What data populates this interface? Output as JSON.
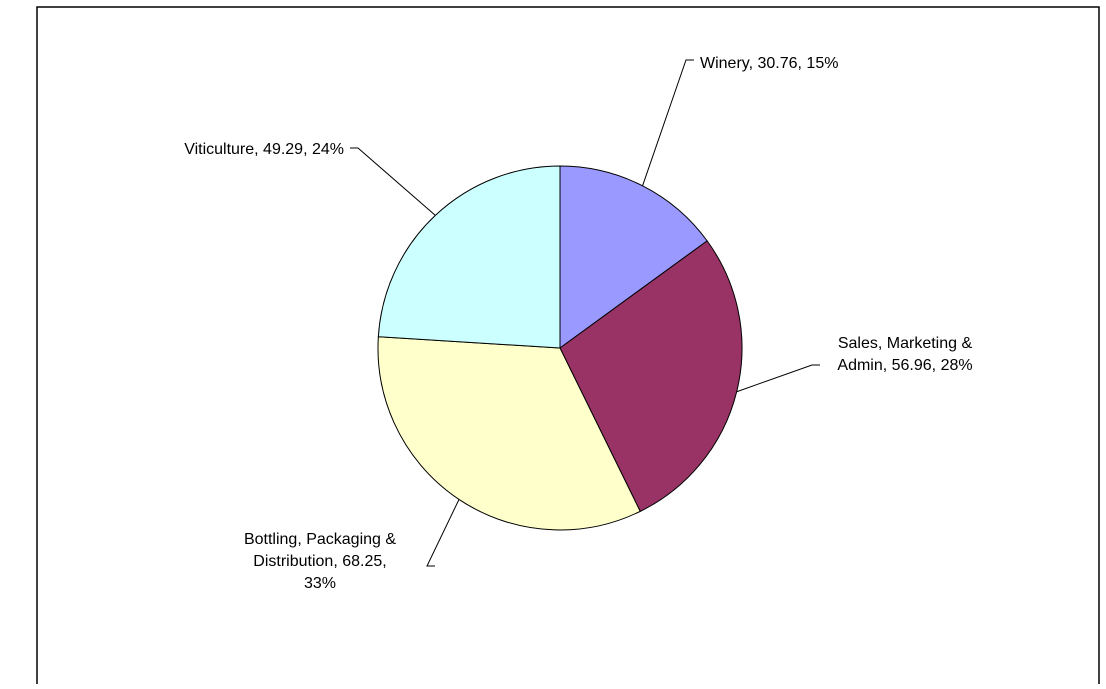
{
  "chart_data": {
    "type": "pie",
    "slices": [
      {
        "label": "Winery",
        "value": 30.76,
        "percent": 15,
        "color": "#9999ff",
        "label_lines": [
          "Winery, 30.76, 15%"
        ]
      },
      {
        "label": "Sales, Marketing & Admin",
        "value": 56.96,
        "percent": 28,
        "color": "#993366",
        "label_lines": [
          "Sales, Marketing &",
          "Admin, 56.96, 28%"
        ]
      },
      {
        "label": "Bottling, Packaging & Distribution",
        "value": 68.25,
        "percent": 33,
        "color": "#ffffcc",
        "label_lines": [
          "Bottling, Packaging &",
          "Distribution, 68.25,",
          "33%"
        ]
      },
      {
        "label": "Viticulture",
        "value": 49.29,
        "percent": 24,
        "color": "#ccffff",
        "label_lines": [
          "Viticulture, 49.29, 24%"
        ]
      }
    ],
    "start_angle": "12 o'clock",
    "direction": "clockwise"
  }
}
